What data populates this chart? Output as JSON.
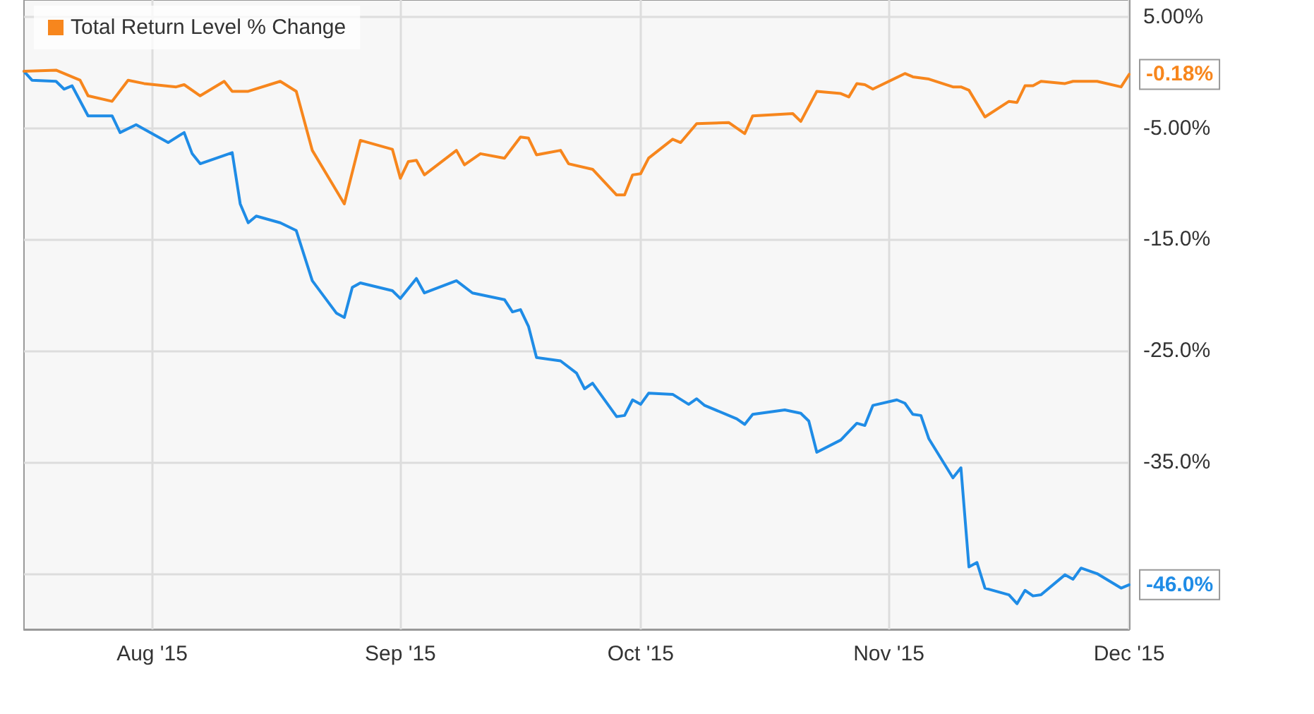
{
  "chart_data": {
    "type": "line",
    "xlim": [
      "2015-07-16",
      "2015-12-01"
    ],
    "xticks": [
      {
        "value": "2015-08-01",
        "label": "Aug '15"
      },
      {
        "value": "2015-09-01",
        "label": "Sep '15"
      },
      {
        "value": "2015-10-01",
        "label": "Oct '15"
      },
      {
        "value": "2015-11-01",
        "label": "Nov '15"
      },
      {
        "value": "2015-12-01",
        "label": "Dec '15"
      }
    ],
    "ylim": [
      -50,
      6.5
    ],
    "yticks": [
      {
        "value": 5,
        "label": "5.00%"
      },
      {
        "value": -5,
        "label": "-5.00%"
      },
      {
        "value": -15,
        "label": "-15.0%"
      },
      {
        "value": -25,
        "label": "-25.0%"
      },
      {
        "value": -35,
        "label": "-35.0%"
      },
      {
        "value": -45,
        "label": null
      }
    ],
    "grid": true,
    "legend": "top left",
    "marker": "none",
    "line_style": "solid",
    "series": [
      {
        "color": "#1f8ce6",
        "x": [
          "2015-07-16",
          "2015-07-17",
          "2015-07-20",
          "2015-07-21",
          "2015-07-22",
          "2015-07-24",
          "2015-07-27",
          "2015-07-28",
          "2015-07-30",
          "2015-08-03",
          "2015-08-05",
          "2015-08-06",
          "2015-08-07",
          "2015-08-11",
          "2015-08-12",
          "2015-08-13",
          "2015-08-14",
          "2015-08-17",
          "2015-08-19",
          "2015-08-21",
          "2015-08-24",
          "2015-08-25",
          "2015-08-26",
          "2015-08-27",
          "2015-08-31",
          "2015-09-01",
          "2015-09-03",
          "2015-09-04",
          "2015-09-08",
          "2015-09-10",
          "2015-09-14",
          "2015-09-15",
          "2015-09-16",
          "2015-09-17",
          "2015-09-18",
          "2015-09-21",
          "2015-09-23",
          "2015-09-24",
          "2015-09-25",
          "2015-09-28",
          "2015-09-29",
          "2015-09-30",
          "2015-10-01",
          "2015-10-02",
          "2015-10-05",
          "2015-10-07",
          "2015-10-08",
          "2015-10-09",
          "2015-10-13",
          "2015-10-14",
          "2015-10-15",
          "2015-10-19",
          "2015-10-21",
          "2015-10-22",
          "2015-10-23",
          "2015-10-26",
          "2015-10-28",
          "2015-10-29",
          "2015-10-30",
          "2015-11-02",
          "2015-11-03",
          "2015-11-04",
          "2015-11-05",
          "2015-11-06",
          "2015-11-09",
          "2015-11-10",
          "2015-11-11",
          "2015-11-12",
          "2015-11-13",
          "2015-11-16",
          "2015-11-17",
          "2015-11-18",
          "2015-11-19",
          "2015-11-20",
          "2015-11-23",
          "2015-11-24",
          "2015-11-25",
          "2015-11-27",
          "2015-11-30",
          "2015-12-01"
        ],
        "values": [
          0.1,
          -0.7,
          -0.8,
          -1.5,
          -1.2,
          -3.9,
          -3.9,
          -5.4,
          -4.7,
          -6.3,
          -5.4,
          -7.3,
          -8.2,
          -7.2,
          -11.8,
          -13.5,
          -12.9,
          -13.5,
          -14.2,
          -18.7,
          -21.6,
          -22,
          -19.3,
          -18.9,
          -19.6,
          -20.3,
          -18.5,
          -19.8,
          -18.7,
          -19.8,
          -20.4,
          -21.5,
          -21.3,
          -22.8,
          -25.6,
          -25.9,
          -27,
          -28.4,
          -27.9,
          -30.9,
          -30.8,
          -29.4,
          -29.8,
          -28.8,
          -28.9,
          -29.8,
          -29.3,
          -29.9,
          -31.1,
          -31.6,
          -30.7,
          -30.3,
          -30.6,
          -31.3,
          -34.1,
          -33,
          -31.5,
          -31.7,
          -29.9,
          -29.4,
          -29.7,
          -30.7,
          -30.8,
          -32.9,
          -36.4,
          -35.5,
          -44.4,
          -44,
          -46.3,
          -46.9,
          -47.7,
          -46.5,
          -47,
          -46.9,
          -45.1,
          -45.5,
          -44.5,
          -45,
          -46.3,
          -46.0
        ],
        "value_labels": [
          null,
          null,
          null,
          null,
          null,
          null,
          null,
          null,
          null,
          null,
          null,
          null,
          null,
          null,
          null,
          null,
          null,
          null,
          null,
          null,
          null,
          null,
          null,
          null,
          null,
          null,
          null,
          null,
          null,
          null,
          null,
          null,
          null,
          null,
          null,
          null,
          null,
          null,
          null,
          null,
          null,
          null,
          null,
          null,
          null,
          null,
          null,
          null,
          null,
          null,
          null,
          null,
          null,
          null,
          null,
          null,
          null,
          null,
          null,
          null,
          null,
          null,
          null,
          null,
          null,
          null,
          null,
          null,
          null,
          null,
          null,
          null,
          null,
          null,
          null,
          null,
          null,
          null,
          null,
          "-46.0%"
        ]
      },
      {
        "name": "Total Return Level % Change",
        "color": "#f7861d",
        "x": [
          "2015-07-16",
          "2015-07-20",
          "2015-07-23",
          "2015-07-24",
          "2015-07-27",
          "2015-07-29",
          "2015-07-31",
          "2015-08-04",
          "2015-08-05",
          "2015-08-07",
          "2015-08-10",
          "2015-08-11",
          "2015-08-13",
          "2015-08-17",
          "2015-08-19",
          "2015-08-21",
          "2015-08-25",
          "2015-08-27",
          "2015-08-31",
          "2015-09-01",
          "2015-09-02",
          "2015-09-03",
          "2015-09-04",
          "2015-09-08",
          "2015-09-09",
          "2015-09-11",
          "2015-09-14",
          "2015-09-16",
          "2015-09-17",
          "2015-09-18",
          "2015-09-21",
          "2015-09-22",
          "2015-09-25",
          "2015-09-28",
          "2015-09-29",
          "2015-09-30",
          "2015-10-01",
          "2015-10-02",
          "2015-10-05",
          "2015-10-06",
          "2015-10-08",
          "2015-10-12",
          "2015-10-14",
          "2015-10-15",
          "2015-10-20",
          "2015-10-21",
          "2015-10-23",
          "2015-10-26",
          "2015-10-27",
          "2015-10-28",
          "2015-10-29",
          "2015-10-30",
          "2015-11-03",
          "2015-11-04",
          "2015-11-06",
          "2015-11-09",
          "2015-11-10",
          "2015-11-11",
          "2015-11-13",
          "2015-11-16",
          "2015-11-17",
          "2015-11-18",
          "2015-11-19",
          "2015-11-20",
          "2015-11-23",
          "2015-11-24",
          "2015-11-27",
          "2015-11-30",
          "2015-12-01"
        ],
        "values": [
          0.1,
          0.2,
          -0.7,
          -2.1,
          -2.6,
          -0.7,
          -1,
          -1.3,
          -1.1,
          -2.1,
          -0.8,
          -1.7,
          -1.7,
          -0.8,
          -1.7,
          -7,
          -11.8,
          -6.1,
          -6.9,
          -9.5,
          -8,
          -7.9,
          -9.2,
          -7,
          -8.3,
          -7.3,
          -7.7,
          -5.8,
          -5.9,
          -7.4,
          -7,
          -8.2,
          -8.7,
          -11,
          -11,
          -9.2,
          -9.1,
          -7.7,
          -6.0,
          -6.3,
          -4.6,
          -4.5,
          -5.5,
          -3.9,
          -3.7,
          -4.4,
          -1.7,
          -1.9,
          -2.2,
          -1.0,
          -1.1,
          -1.5,
          -0.1,
          -0.4,
          -0.6,
          -1.3,
          -1.3,
          -1.6,
          -4.0,
          -2.6,
          -2.7,
          -1.2,
          -1.2,
          -0.8,
          -1.0,
          -0.8,
          -0.8,
          -1.3,
          -0.18
        ],
        "value_labels": [
          null,
          null,
          null,
          null,
          null,
          null,
          null,
          null,
          null,
          null,
          null,
          null,
          null,
          null,
          null,
          null,
          null,
          null,
          null,
          null,
          null,
          null,
          null,
          null,
          null,
          null,
          null,
          null,
          null,
          null,
          null,
          null,
          null,
          null,
          null,
          null,
          null,
          null,
          null,
          null,
          null,
          null,
          null,
          null,
          null,
          null,
          null,
          null,
          null,
          null,
          null,
          null,
          null,
          null,
          null,
          null,
          null,
          null,
          null,
          null,
          null,
          null,
          null,
          null,
          null,
          null,
          null,
          null,
          "-0.18%"
        ]
      }
    ]
  }
}
